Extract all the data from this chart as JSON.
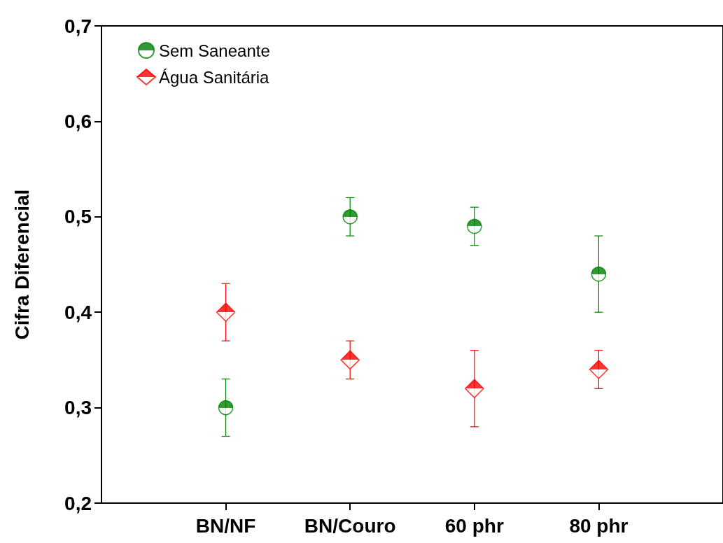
{
  "chart_data": {
    "type": "scatter",
    "ylabel": "Cifra Diferencial",
    "categories": [
      "BN/NF",
      "BN/Couro",
      "60 phr",
      "80 phr"
    ],
    "series": [
      {
        "name": "Sem Saneante",
        "color": "#008000",
        "marker": "circle",
        "values": [
          0.3,
          0.5,
          0.49,
          0.44
        ],
        "errors": [
          0.03,
          0.02,
          0.02,
          0.04
        ]
      },
      {
        "name": "Água Sanitária",
        "color": "#ff0000",
        "marker": "diamond",
        "values": [
          0.4,
          0.35,
          0.32,
          0.34
        ],
        "errors": [
          0.03,
          0.02,
          0.04,
          0.02
        ]
      }
    ],
    "ylim": [
      0.2,
      0.7
    ],
    "yticks": [
      {
        "value": 0.2,
        "label": "0,2"
      },
      {
        "value": 0.3,
        "label": "0,3"
      },
      {
        "value": 0.4,
        "label": "0,4"
      },
      {
        "value": 0.5,
        "label": "0,5"
      },
      {
        "value": 0.6,
        "label": "0,6"
      },
      {
        "value": 0.7,
        "label": "0,7"
      }
    ],
    "grid": false,
    "legend": "top left"
  }
}
